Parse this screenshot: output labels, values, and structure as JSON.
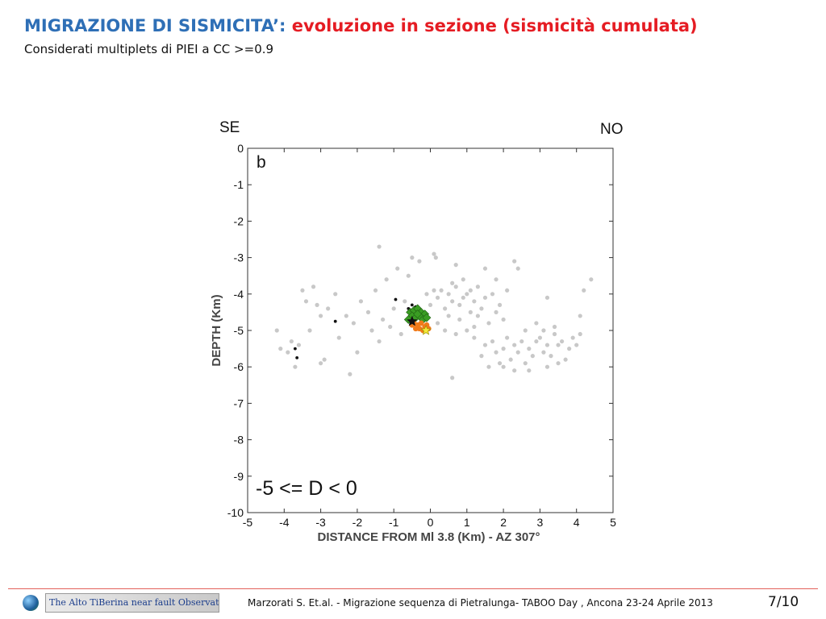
{
  "header": {
    "title_part1": "MIGRAZIONE DI SISMICITA’: ",
    "title_part2": "evoluzione in sezione (sismicità cumulata)",
    "subtitle": "Considerati multiplets di PIEI a CC >=0.9"
  },
  "direction_labels": {
    "left": "SE",
    "right": "NO"
  },
  "chart_data": {
    "type": "scatter",
    "panel_label": "b",
    "annotation": "-5 <= D < 0",
    "xlabel": "DISTANCE FROM Ml 3.8 (Km) - AZ 307°",
    "ylabel": "DEPTH (Km)",
    "xlim": [
      -5,
      5
    ],
    "ylim": [
      -10,
      0
    ],
    "xticks": [
      "-5",
      "-4",
      "-3",
      "-2",
      "-1",
      "0",
      "1",
      "2",
      "3",
      "4",
      "5"
    ],
    "yticks": [
      "0",
      "-1",
      "-2",
      "-3",
      "-4",
      "-5",
      "-6",
      "-7",
      "-8",
      "-9",
      "-10"
    ],
    "colors": {
      "background_events": "#c8c8c8",
      "black_events": "#111111",
      "green_multiplets": "#3a9d23",
      "orange_multiplets": "#f07b1a",
      "mainshock_star": "#f4ea3a",
      "black_star": "#111111"
    },
    "series": [
      {
        "marker": "circle",
        "color": "#c8c8c8",
        "points": [
          [
            0.3,
            -3.9
          ],
          [
            0.5,
            -4.0
          ],
          [
            0.7,
            -3.8
          ],
          [
            0.9,
            -4.1
          ],
          [
            1.1,
            -3.9
          ],
          [
            0.6,
            -4.2
          ],
          [
            0.8,
            -4.3
          ],
          [
            1.0,
            -4.0
          ],
          [
            1.2,
            -4.2
          ],
          [
            0.4,
            -4.4
          ],
          [
            0.2,
            -4.1
          ],
          [
            0.1,
            -3.9
          ],
          [
            0.6,
            -3.7
          ],
          [
            0.9,
            -3.6
          ],
          [
            1.3,
            -3.8
          ],
          [
            1.5,
            -4.1
          ],
          [
            1.4,
            -4.4
          ],
          [
            1.7,
            -4.0
          ],
          [
            1.9,
            -4.3
          ],
          [
            2.1,
            -3.9
          ],
          [
            0.5,
            -4.6
          ],
          [
            0.8,
            -4.7
          ],
          [
            1.1,
            -4.5
          ],
          [
            1.3,
            -4.6
          ],
          [
            1.6,
            -4.8
          ],
          [
            1.8,
            -4.5
          ],
          [
            0.0,
            -4.3
          ],
          [
            -0.1,
            -4.0
          ],
          [
            0.2,
            -4.8
          ],
          [
            0.4,
            -5.0
          ],
          [
            0.7,
            -5.1
          ],
          [
            1.0,
            -5.0
          ],
          [
            1.2,
            -5.2
          ],
          [
            1.5,
            -5.4
          ],
          [
            1.8,
            -5.6
          ],
          [
            2.0,
            -5.5
          ],
          [
            2.2,
            -5.8
          ],
          [
            2.4,
            -5.6
          ],
          [
            2.6,
            -5.9
          ],
          [
            2.8,
            -5.7
          ],
          [
            2.1,
            -5.2
          ],
          [
            2.3,
            -5.4
          ],
          [
            2.5,
            -5.3
          ],
          [
            2.7,
            -5.5
          ],
          [
            2.9,
            -5.3
          ],
          [
            3.1,
            -5.6
          ],
          [
            1.9,
            -5.9
          ],
          [
            1.7,
            -5.3
          ],
          [
            2.0,
            -6.0
          ],
          [
            2.3,
            -6.1
          ],
          [
            3.0,
            -5.2
          ],
          [
            3.2,
            -5.4
          ],
          [
            3.3,
            -5.7
          ],
          [
            3.5,
            -5.4
          ],
          [
            3.4,
            -5.1
          ],
          [
            3.6,
            -5.3
          ],
          [
            3.8,
            -5.5
          ],
          [
            3.7,
            -5.8
          ],
          [
            3.9,
            -5.2
          ],
          [
            3.5,
            -5.9
          ],
          [
            3.2,
            -6.0
          ],
          [
            4.0,
            -5.4
          ],
          [
            3.1,
            -5.0
          ],
          [
            2.6,
            -5.0
          ],
          [
            1.4,
            -5.7
          ],
          [
            1.6,
            -6.0
          ],
          [
            2.7,
            -6.1
          ],
          [
            4.1,
            -5.1
          ],
          [
            2.9,
            -4.8
          ],
          [
            1.2,
            -4.9
          ],
          [
            -0.2,
            -4.6
          ],
          [
            -0.4,
            -4.5
          ],
          [
            -0.7,
            -4.2
          ],
          [
            -1.0,
            -4.4
          ],
          [
            -1.3,
            -4.7
          ],
          [
            -1.6,
            -5.0
          ],
          [
            -1.1,
            -4.9
          ],
          [
            -0.8,
            -5.1
          ],
          [
            -1.4,
            -5.3
          ],
          [
            -1.7,
            -4.5
          ],
          [
            -1.9,
            -4.2
          ],
          [
            -2.1,
            -4.8
          ],
          [
            -1.5,
            -3.9
          ],
          [
            -1.2,
            -3.6
          ],
          [
            -0.9,
            -3.3
          ],
          [
            -0.6,
            -3.5
          ],
          [
            -0.3,
            -3.1
          ],
          [
            0.1,
            -2.9
          ],
          [
            0.15,
            -3.0
          ],
          [
            -2.3,
            -4.6
          ],
          [
            -2.5,
            -5.2
          ],
          [
            -3.2,
            -3.8
          ],
          [
            -3.5,
            -3.9
          ],
          [
            -3.1,
            -4.3
          ],
          [
            -3.0,
            -4.6
          ],
          [
            -2.8,
            -4.4
          ],
          [
            -3.3,
            -5.0
          ],
          [
            -3.6,
            -5.4
          ],
          [
            -3.8,
            -5.3
          ],
          [
            -3.9,
            -5.6
          ],
          [
            -4.1,
            -5.5
          ],
          [
            -3.0,
            -5.9
          ],
          [
            -2.9,
            -5.8
          ],
          [
            -3.7,
            -6.0
          ],
          [
            -2.2,
            -6.2
          ],
          [
            -4.2,
            -5.0
          ],
          [
            -2.0,
            -5.6
          ],
          [
            -1.4,
            -2.7
          ],
          [
            -0.5,
            -3.0
          ],
          [
            0.6,
            -6.3
          ],
          [
            3.2,
            -4.1
          ],
          [
            4.2,
            -3.9
          ],
          [
            4.4,
            -3.6
          ],
          [
            4.1,
            -4.6
          ],
          [
            3.4,
            -4.9
          ],
          [
            -2.6,
            -4.0
          ],
          [
            -3.4,
            -4.2
          ],
          [
            2.3,
            -3.1
          ],
          [
            2.4,
            -3.3
          ],
          [
            2.0,
            -4.7
          ],
          [
            0.7,
            -3.2
          ],
          [
            1.5,
            -3.3
          ],
          [
            1.8,
            -3.6
          ]
        ]
      },
      {
        "marker": "circle",
        "color": "#111111",
        "points": [
          [
            -0.5,
            -4.3
          ],
          [
            -0.6,
            -4.4
          ],
          [
            -0.4,
            -4.35
          ],
          [
            -0.3,
            -4.5
          ],
          [
            -0.95,
            -4.15
          ],
          [
            -2.6,
            -4.75
          ],
          [
            -3.7,
            -5.5
          ],
          [
            -3.65,
            -5.75
          ]
        ]
      },
      {
        "marker": "diamond",
        "color": "#3a9d23",
        "points": [
          [
            -0.55,
            -4.5
          ],
          [
            -0.45,
            -4.45
          ],
          [
            -0.35,
            -4.4
          ],
          [
            -0.25,
            -4.5
          ],
          [
            -0.15,
            -4.55
          ],
          [
            -0.5,
            -4.6
          ],
          [
            -0.4,
            -4.65
          ],
          [
            -0.3,
            -4.6
          ],
          [
            -0.2,
            -4.7
          ],
          [
            -0.6,
            -4.7
          ],
          [
            -0.1,
            -4.65
          ],
          [
            -0.35,
            -4.55
          ]
        ]
      },
      {
        "marker": "circle",
        "color": "#f07b1a",
        "points": [
          [
            -0.45,
            -4.8
          ],
          [
            -0.35,
            -4.85
          ],
          [
            -0.25,
            -4.8
          ],
          [
            -0.15,
            -4.9
          ],
          [
            -0.3,
            -4.95
          ],
          [
            -0.2,
            -5.0
          ],
          [
            -0.1,
            -4.85
          ],
          [
            -0.4,
            -4.95
          ],
          [
            -0.05,
            -4.95
          ],
          [
            -0.5,
            -4.85
          ]
        ]
      },
      {
        "marker": "star",
        "color": "#111111",
        "points": [
          [
            -0.5,
            -4.75
          ]
        ]
      },
      {
        "marker": "star",
        "color": "#f4ea3a",
        "points": [
          [
            -0.12,
            -5.0
          ]
        ]
      }
    ]
  },
  "footer": {
    "logo_text": "The Alto TiBerina near fault Observatory",
    "citation": "Marzorati S.  Et.al. - Migrazione sequenza di Pietralunga- TABOO Day , Ancona 23-24 Aprile 2013",
    "page": "7/10"
  }
}
